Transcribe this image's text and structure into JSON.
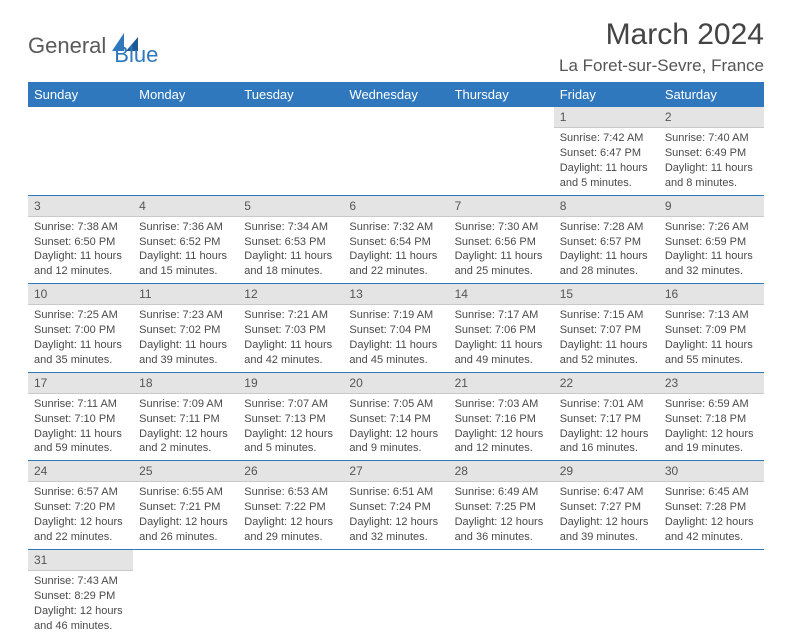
{
  "brand": {
    "part1": "General",
    "part2": "Blue",
    "accent": "#2f78bd",
    "gray": "#5a5a5a"
  },
  "title": "March 2024",
  "location": "La Foret-sur-Sevre, France",
  "colors": {
    "header_bg": "#2f78bd",
    "header_text": "#ffffff",
    "dayhead_bg": "#e4e4e4",
    "rule": "#2f78bd",
    "text": "#4a4a4a"
  },
  "weekdays": [
    "Sunday",
    "Monday",
    "Tuesday",
    "Wednesday",
    "Thursday",
    "Friday",
    "Saturday"
  ],
  "weeks": [
    [
      null,
      null,
      null,
      null,
      null,
      {
        "n": "1",
        "sr": "Sunrise: 7:42 AM",
        "ss": "Sunset: 6:47 PM",
        "dl1": "Daylight: 11 hours",
        "dl2": "and 5 minutes."
      },
      {
        "n": "2",
        "sr": "Sunrise: 7:40 AM",
        "ss": "Sunset: 6:49 PM",
        "dl1": "Daylight: 11 hours",
        "dl2": "and 8 minutes."
      }
    ],
    [
      {
        "n": "3",
        "sr": "Sunrise: 7:38 AM",
        "ss": "Sunset: 6:50 PM",
        "dl1": "Daylight: 11 hours",
        "dl2": "and 12 minutes."
      },
      {
        "n": "4",
        "sr": "Sunrise: 7:36 AM",
        "ss": "Sunset: 6:52 PM",
        "dl1": "Daylight: 11 hours",
        "dl2": "and 15 minutes."
      },
      {
        "n": "5",
        "sr": "Sunrise: 7:34 AM",
        "ss": "Sunset: 6:53 PM",
        "dl1": "Daylight: 11 hours",
        "dl2": "and 18 minutes."
      },
      {
        "n": "6",
        "sr": "Sunrise: 7:32 AM",
        "ss": "Sunset: 6:54 PM",
        "dl1": "Daylight: 11 hours",
        "dl2": "and 22 minutes."
      },
      {
        "n": "7",
        "sr": "Sunrise: 7:30 AM",
        "ss": "Sunset: 6:56 PM",
        "dl1": "Daylight: 11 hours",
        "dl2": "and 25 minutes."
      },
      {
        "n": "8",
        "sr": "Sunrise: 7:28 AM",
        "ss": "Sunset: 6:57 PM",
        "dl1": "Daylight: 11 hours",
        "dl2": "and 28 minutes."
      },
      {
        "n": "9",
        "sr": "Sunrise: 7:26 AM",
        "ss": "Sunset: 6:59 PM",
        "dl1": "Daylight: 11 hours",
        "dl2": "and 32 minutes."
      }
    ],
    [
      {
        "n": "10",
        "sr": "Sunrise: 7:25 AM",
        "ss": "Sunset: 7:00 PM",
        "dl1": "Daylight: 11 hours",
        "dl2": "and 35 minutes."
      },
      {
        "n": "11",
        "sr": "Sunrise: 7:23 AM",
        "ss": "Sunset: 7:02 PM",
        "dl1": "Daylight: 11 hours",
        "dl2": "and 39 minutes."
      },
      {
        "n": "12",
        "sr": "Sunrise: 7:21 AM",
        "ss": "Sunset: 7:03 PM",
        "dl1": "Daylight: 11 hours",
        "dl2": "and 42 minutes."
      },
      {
        "n": "13",
        "sr": "Sunrise: 7:19 AM",
        "ss": "Sunset: 7:04 PM",
        "dl1": "Daylight: 11 hours",
        "dl2": "and 45 minutes."
      },
      {
        "n": "14",
        "sr": "Sunrise: 7:17 AM",
        "ss": "Sunset: 7:06 PM",
        "dl1": "Daylight: 11 hours",
        "dl2": "and 49 minutes."
      },
      {
        "n": "15",
        "sr": "Sunrise: 7:15 AM",
        "ss": "Sunset: 7:07 PM",
        "dl1": "Daylight: 11 hours",
        "dl2": "and 52 minutes."
      },
      {
        "n": "16",
        "sr": "Sunrise: 7:13 AM",
        "ss": "Sunset: 7:09 PM",
        "dl1": "Daylight: 11 hours",
        "dl2": "and 55 minutes."
      }
    ],
    [
      {
        "n": "17",
        "sr": "Sunrise: 7:11 AM",
        "ss": "Sunset: 7:10 PM",
        "dl1": "Daylight: 11 hours",
        "dl2": "and 59 minutes."
      },
      {
        "n": "18",
        "sr": "Sunrise: 7:09 AM",
        "ss": "Sunset: 7:11 PM",
        "dl1": "Daylight: 12 hours",
        "dl2": "and 2 minutes."
      },
      {
        "n": "19",
        "sr": "Sunrise: 7:07 AM",
        "ss": "Sunset: 7:13 PM",
        "dl1": "Daylight: 12 hours",
        "dl2": "and 5 minutes."
      },
      {
        "n": "20",
        "sr": "Sunrise: 7:05 AM",
        "ss": "Sunset: 7:14 PM",
        "dl1": "Daylight: 12 hours",
        "dl2": "and 9 minutes."
      },
      {
        "n": "21",
        "sr": "Sunrise: 7:03 AM",
        "ss": "Sunset: 7:16 PM",
        "dl1": "Daylight: 12 hours",
        "dl2": "and 12 minutes."
      },
      {
        "n": "22",
        "sr": "Sunrise: 7:01 AM",
        "ss": "Sunset: 7:17 PM",
        "dl1": "Daylight: 12 hours",
        "dl2": "and 16 minutes."
      },
      {
        "n": "23",
        "sr": "Sunrise: 6:59 AM",
        "ss": "Sunset: 7:18 PM",
        "dl1": "Daylight: 12 hours",
        "dl2": "and 19 minutes."
      }
    ],
    [
      {
        "n": "24",
        "sr": "Sunrise: 6:57 AM",
        "ss": "Sunset: 7:20 PM",
        "dl1": "Daylight: 12 hours",
        "dl2": "and 22 minutes."
      },
      {
        "n": "25",
        "sr": "Sunrise: 6:55 AM",
        "ss": "Sunset: 7:21 PM",
        "dl1": "Daylight: 12 hours",
        "dl2": "and 26 minutes."
      },
      {
        "n": "26",
        "sr": "Sunrise: 6:53 AM",
        "ss": "Sunset: 7:22 PM",
        "dl1": "Daylight: 12 hours",
        "dl2": "and 29 minutes."
      },
      {
        "n": "27",
        "sr": "Sunrise: 6:51 AM",
        "ss": "Sunset: 7:24 PM",
        "dl1": "Daylight: 12 hours",
        "dl2": "and 32 minutes."
      },
      {
        "n": "28",
        "sr": "Sunrise: 6:49 AM",
        "ss": "Sunset: 7:25 PM",
        "dl1": "Daylight: 12 hours",
        "dl2": "and 36 minutes."
      },
      {
        "n": "29",
        "sr": "Sunrise: 6:47 AM",
        "ss": "Sunset: 7:27 PM",
        "dl1": "Daylight: 12 hours",
        "dl2": "and 39 minutes."
      },
      {
        "n": "30",
        "sr": "Sunrise: 6:45 AM",
        "ss": "Sunset: 7:28 PM",
        "dl1": "Daylight: 12 hours",
        "dl2": "and 42 minutes."
      }
    ],
    [
      {
        "n": "31",
        "sr": "Sunrise: 7:43 AM",
        "ss": "Sunset: 8:29 PM",
        "dl1": "Daylight: 12 hours",
        "dl2": "and 46 minutes."
      },
      null,
      null,
      null,
      null,
      null,
      null
    ]
  ]
}
